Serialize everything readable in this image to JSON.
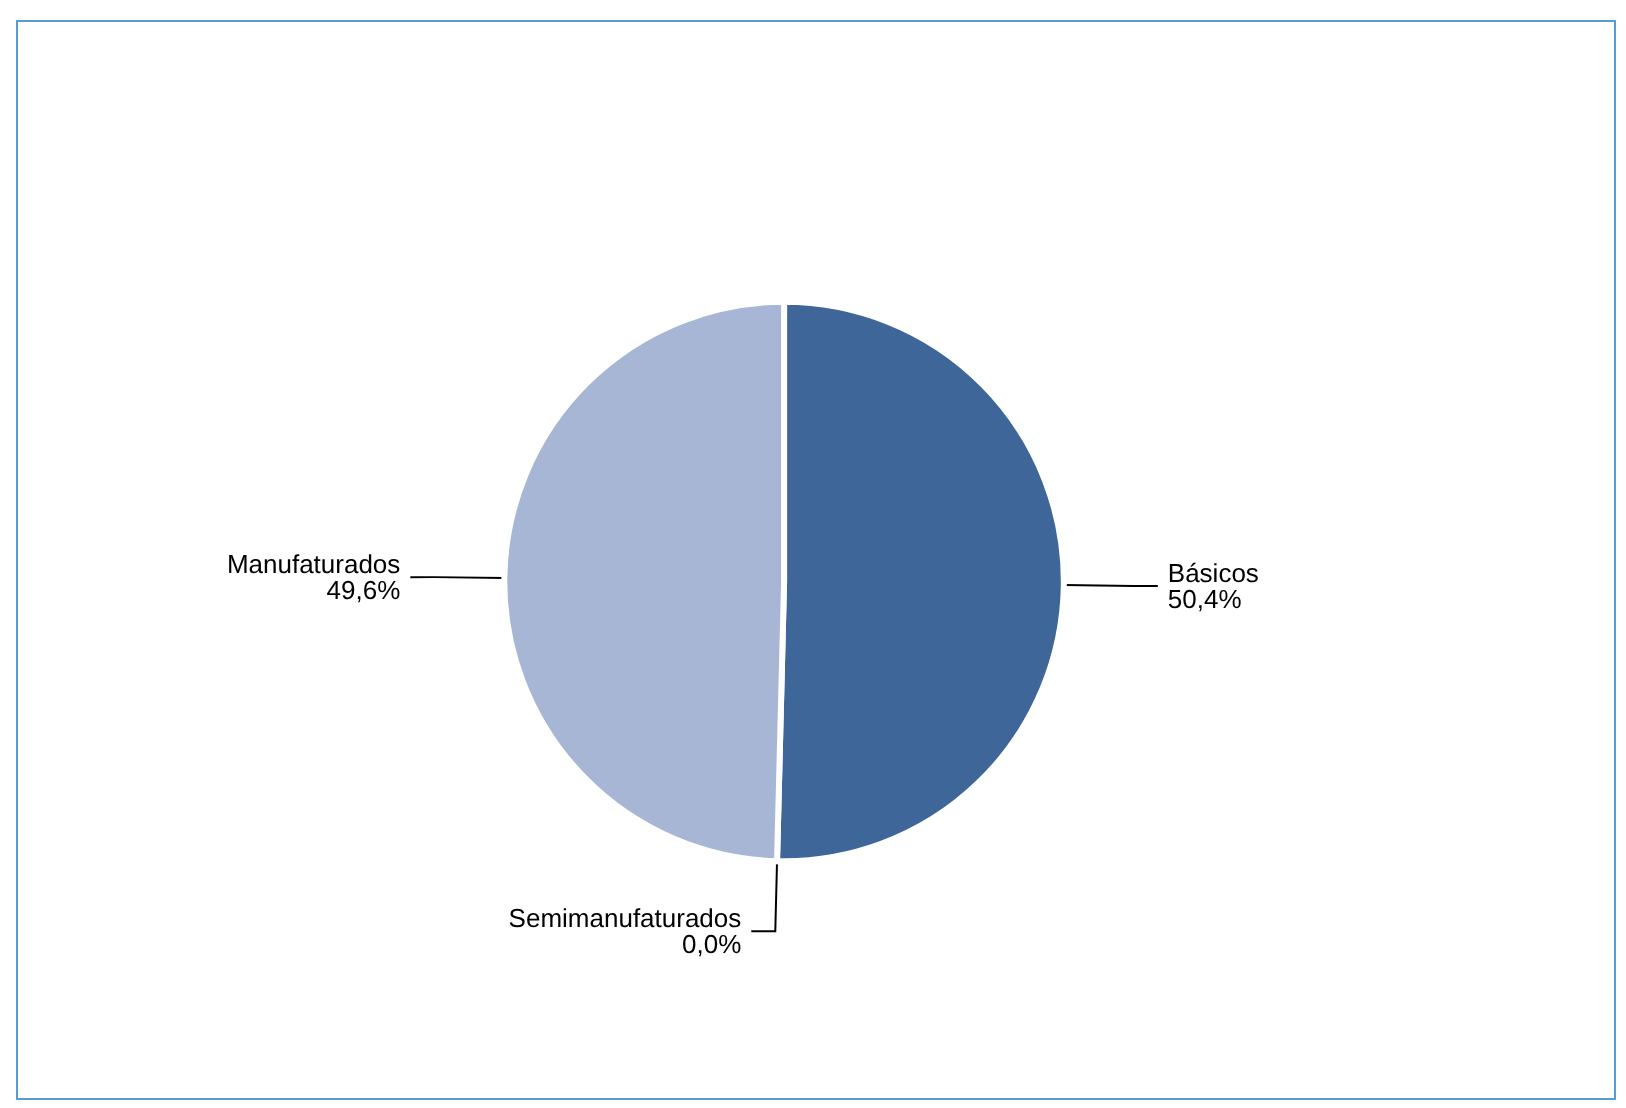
{
  "chart_data": {
    "type": "pie",
    "categories": [
      "Básicos",
      "Semimanufaturados",
      "Manufaturados"
    ],
    "values": [
      50.4,
      0.0,
      49.6
    ],
    "colors": [
      "#3e6699",
      "#4a74aa",
      "#a7b6d4"
    ],
    "value_labels": [
      "50,4%",
      "0,0%",
      "49,6%"
    ],
    "legend": false
  }
}
